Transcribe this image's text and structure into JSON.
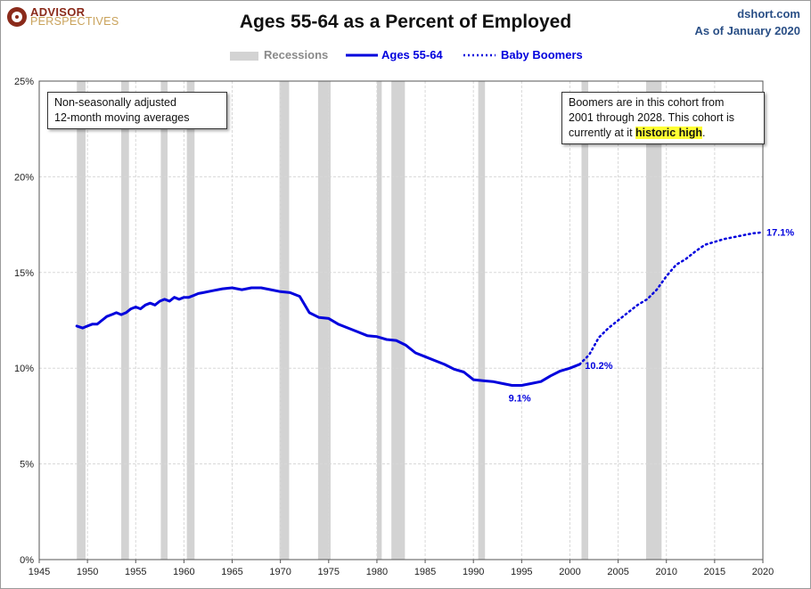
{
  "header": {
    "logo_line1": "ADVISOR",
    "logo_line2": "PERSPECTIVES",
    "title": "Ages 55-64 as a Percent of Employed",
    "source_line1": "dshort.com",
    "source_line2": "As of January 2020"
  },
  "annotations": {
    "left_line1": "Non-seasonally adjusted",
    "left_line2": "12-month moving averages",
    "right_line1": "Boomers are in this cohort from",
    "right_line2": "2001  through 2028.  This cohort is",
    "right_line3_pre": "currently at it ",
    "right_line3_highlight": "historic high",
    "right_line3_post": "."
  },
  "chart_data": {
    "type": "line",
    "title": "Ages 55-64 as a Percent of Employed",
    "xlim": [
      1945,
      2020
    ],
    "ylim": [
      0,
      25
    ],
    "x_ticks": [
      1945,
      1950,
      1955,
      1960,
      1965,
      1970,
      1975,
      1980,
      1985,
      1990,
      1995,
      2000,
      2005,
      2010,
      2015,
      2020
    ],
    "y_ticks": [
      0,
      5,
      10,
      15,
      20,
      25
    ],
    "y_tick_labels": [
      "0%",
      "5%",
      "10%",
      "15%",
      "20%",
      "25%"
    ],
    "grid": true,
    "legend_position": "top-center",
    "recessions": {
      "name": "Recessions",
      "color": "#d3d3d3",
      "periods": [
        [
          1948.9,
          1949.8
        ],
        [
          1953.5,
          1954.3
        ],
        [
          1957.6,
          1958.3
        ],
        [
          1960.3,
          1961.1
        ],
        [
          1969.9,
          1970.9
        ],
        [
          1973.9,
          1975.2
        ],
        [
          1980.0,
          1980.5
        ],
        [
          1981.5,
          1982.9
        ],
        [
          1990.5,
          1991.2
        ],
        [
          2001.2,
          2001.9
        ],
        [
          2007.9,
          2009.5
        ]
      ]
    },
    "series": [
      {
        "name": "Ages 55-64",
        "color": "#0000dd",
        "style": "solid",
        "x": [
          1948.9,
          1949.5,
          1950,
          1950.5,
          1951,
          1951.5,
          1952,
          1952.5,
          1953,
          1953.5,
          1954,
          1954.5,
          1955,
          1955.5,
          1956,
          1956.5,
          1957,
          1957.5,
          1958,
          1958.5,
          1959,
          1959.5,
          1960,
          1960.5,
          1961,
          1961.5,
          1962,
          1963,
          1964,
          1965,
          1966,
          1967,
          1968,
          1969,
          1970,
          1971,
          1972,
          1973,
          1974,
          1975,
          1976,
          1977,
          1978,
          1979,
          1980,
          1981,
          1982,
          1983,
          1984,
          1985,
          1986,
          1987,
          1988,
          1989,
          1990,
          1991,
          1992,
          1993,
          1994,
          1995,
          1996,
          1997,
          1998,
          1999,
          2000,
          2001
        ],
        "y": [
          12.2,
          12.1,
          12.2,
          12.3,
          12.3,
          12.5,
          12.7,
          12.8,
          12.9,
          12.8,
          12.9,
          13.1,
          13.2,
          13.1,
          13.3,
          13.4,
          13.3,
          13.5,
          13.6,
          13.5,
          13.7,
          13.6,
          13.7,
          13.7,
          13.8,
          13.9,
          13.95,
          14.05,
          14.15,
          14.2,
          14.1,
          14.2,
          14.2,
          14.1,
          14.0,
          13.95,
          13.75,
          12.9,
          12.65,
          12.6,
          12.3,
          12.1,
          11.9,
          11.7,
          11.65,
          11.5,
          11.45,
          11.2,
          10.8,
          10.6,
          10.4,
          10.2,
          9.95,
          9.8,
          9.4,
          9.35,
          9.3,
          9.2,
          9.1,
          9.1,
          9.2,
          9.3,
          9.6,
          9.85,
          10.0,
          10.2
        ]
      },
      {
        "name": "Baby Boomers",
        "color": "#0000dd",
        "style": "dotted",
        "x": [
          2001,
          2002,
          2003,
          2004,
          2005,
          2006,
          2007,
          2008,
          2009,
          2010,
          2011,
          2012,
          2013,
          2014,
          2015,
          2016,
          2017,
          2018,
          2019,
          2020
        ],
        "y": [
          10.2,
          10.7,
          11.6,
          12.1,
          12.5,
          12.9,
          13.3,
          13.6,
          14.1,
          14.8,
          15.4,
          15.7,
          16.1,
          16.45,
          16.6,
          16.75,
          16.85,
          16.95,
          17.05,
          17.1
        ]
      }
    ],
    "data_labels": [
      {
        "x": 1994.8,
        "y": 9.1,
        "text": "9.1%"
      },
      {
        "x": 2001,
        "y": 10.2,
        "text": "10.2%"
      },
      {
        "x": 2020,
        "y": 17.1,
        "text": "17.1%"
      }
    ]
  }
}
